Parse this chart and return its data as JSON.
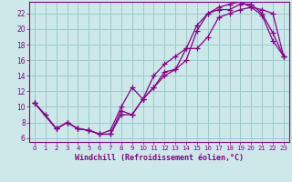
{
  "xlabel": "Windchill (Refroidissement éolien,°C)",
  "bg_color": "#cce8e8",
  "line_color": "#880088",
  "grid_color": "#99cccc",
  "xlim": [
    -0.5,
    23.5
  ],
  "ylim": [
    5.5,
    23.5
  ],
  "xticks": [
    0,
    1,
    2,
    3,
    4,
    5,
    6,
    7,
    8,
    9,
    10,
    11,
    12,
    13,
    14,
    15,
    16,
    17,
    18,
    19,
    20,
    21,
    22,
    23
  ],
  "yticks": [
    6,
    8,
    10,
    12,
    14,
    16,
    18,
    20,
    22
  ],
  "curve1_x": [
    0,
    1,
    2,
    3,
    4,
    5,
    6,
    7,
    8,
    9,
    10,
    11,
    12,
    13,
    14,
    15,
    16,
    17,
    18,
    19,
    20,
    21,
    22,
    23
  ],
  "curve1_y": [
    10.5,
    9.0,
    7.2,
    8.0,
    7.2,
    7.0,
    6.5,
    6.5,
    9.5,
    9.0,
    11.0,
    12.5,
    14.5,
    14.8,
    17.5,
    17.5,
    19.0,
    21.5,
    22.0,
    22.5,
    22.8,
    22.5,
    22.0,
    16.5
  ],
  "curve2_x": [
    0,
    2,
    3,
    4,
    5,
    6,
    7,
    8,
    9,
    10,
    11,
    12,
    13,
    14,
    15,
    16,
    17,
    18,
    19,
    20,
    21,
    22,
    23
  ],
  "curve2_y": [
    10.5,
    7.2,
    8.0,
    7.2,
    7.0,
    6.5,
    7.0,
    10.0,
    12.5,
    11.0,
    14.0,
    15.5,
    16.5,
    17.5,
    20.5,
    22.0,
    22.8,
    23.2,
    23.5,
    22.8,
    21.8,
    18.5,
    16.5
  ],
  "curve3_x": [
    0,
    2,
    3,
    4,
    5,
    6,
    7,
    8,
    9,
    10,
    11,
    12,
    13,
    14,
    15,
    16,
    17,
    18,
    19,
    20,
    21,
    22,
    23
  ],
  "curve3_y": [
    10.5,
    7.2,
    8.0,
    7.2,
    7.0,
    6.5,
    6.5,
    9.0,
    9.0,
    11.0,
    12.5,
    14.0,
    14.8,
    16.0,
    19.8,
    22.0,
    22.5,
    22.5,
    23.2,
    23.2,
    22.0,
    19.5,
    16.5
  ]
}
